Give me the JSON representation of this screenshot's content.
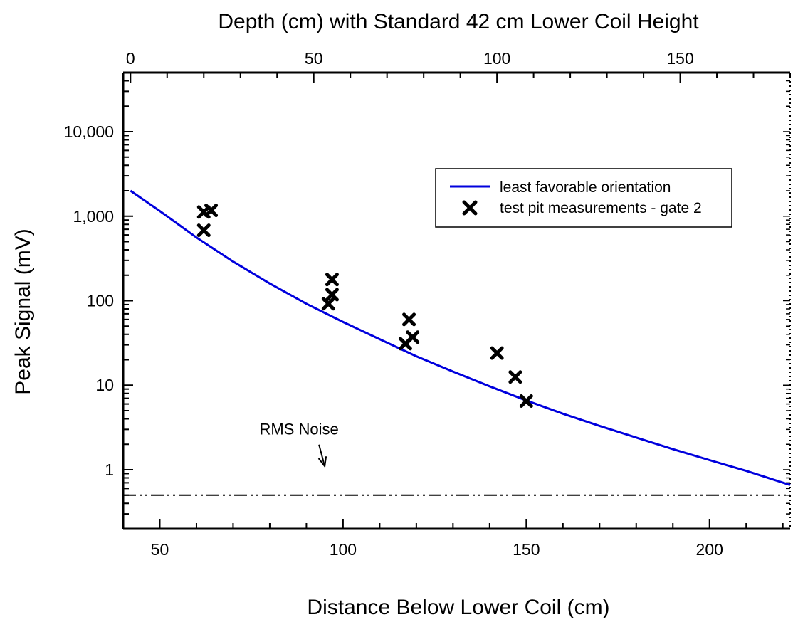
{
  "chart_data": {
    "type": "scatter",
    "title": "",
    "xlabel": "Distance Below Lower Coil (cm)",
    "ylabel": "Peak Signal (mV)",
    "x2label": "Depth (cm) with Standard 42 cm Lower Coil Height",
    "xlim": [
      40,
      222
    ],
    "ylim": [
      0.2,
      50000
    ],
    "yscale": "log",
    "x2_offset": 42,
    "x_ticks": [
      50,
      100,
      150,
      200
    ],
    "x_tick_labels": [
      "50",
      "100",
      "150",
      "200"
    ],
    "x2_ticks": [
      0,
      50,
      100,
      150
    ],
    "x2_tick_labels": [
      "0",
      "50",
      "100",
      "150"
    ],
    "y_ticks": [
      1,
      10,
      100,
      1000,
      10000
    ],
    "y_tick_labels": [
      "1",
      "10",
      "100",
      "1,000",
      "10,000"
    ],
    "grid": false,
    "legend_position": "top-right",
    "series": [
      {
        "name": "least favorable orientation",
        "kind": "line",
        "color": "#0000dd",
        "x": [
          42,
          50,
          60,
          70,
          80,
          90,
          100,
          110,
          120,
          130,
          140,
          150,
          160,
          170,
          180,
          190,
          200,
          210,
          222
        ],
        "y": [
          2000,
          1150,
          560,
          290,
          160,
          92,
          56,
          35,
          22,
          14.5,
          9.7,
          6.6,
          4.6,
          3.3,
          2.4,
          1.75,
          1.3,
          0.97,
          0.66
        ]
      },
      {
        "name": "test pit measurements - gate 2",
        "kind": "scatter",
        "marker": "x",
        "color": "#000000",
        "x": [
          62,
          62,
          64,
          96,
          97,
          97,
          117,
          118,
          119,
          142,
          147,
          150
        ],
        "y": [
          1120,
          680,
          1170,
          92,
          118,
          178,
          31,
          60,
          37,
          24,
          12.5,
          6.5
        ]
      },
      {
        "name": "RMS Noise",
        "kind": "hline",
        "color": "#000000",
        "y": 0.5
      }
    ],
    "annotations": [
      {
        "text": "RMS Noise",
        "x": 88,
        "y": 2.6,
        "arrow_to": [
          95,
          1.1
        ]
      }
    ]
  }
}
